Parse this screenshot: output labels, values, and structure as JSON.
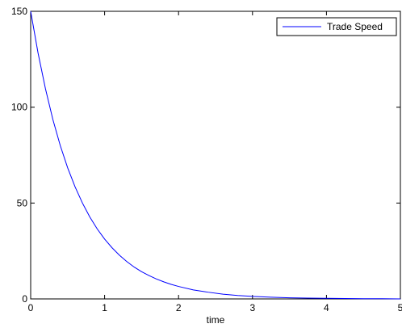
{
  "chart_data": {
    "type": "line",
    "title": "",
    "xlabel": "time",
    "ylabel": "",
    "xlim": [
      0,
      5
    ],
    "ylim": [
      0,
      150
    ],
    "x_ticks": [
      "0",
      "1",
      "2",
      "3",
      "4",
      "5"
    ],
    "y_ticks": [
      "0",
      "50",
      "100",
      "150"
    ],
    "grid": false,
    "legend": {
      "position": "top-right",
      "entries": [
        "Trade Speed"
      ]
    },
    "series": [
      {
        "name": "Trade Speed",
        "color": "#0000ff",
        "x": [
          0,
          0.1,
          0.2,
          0.3,
          0.4,
          0.5,
          0.6,
          0.7,
          0.8,
          0.9,
          1.0,
          1.1,
          1.2,
          1.3,
          1.4,
          1.5,
          1.6,
          1.7,
          1.8,
          1.9,
          2.0,
          2.2,
          2.4,
          2.6,
          2.8,
          3.0,
          3.25,
          3.5,
          3.75,
          4.0,
          4.25,
          4.5,
          4.75,
          5.0
        ],
        "y": [
          150,
          128.2,
          109.6,
          93.6,
          80.0,
          68.4,
          58.5,
          50.0,
          42.7,
          36.5,
          31.2,
          26.7,
          22.8,
          19.5,
          16.6,
          14.2,
          12.2,
          10.4,
          8.9,
          7.6,
          6.5,
          4.7,
          3.5,
          2.5,
          1.8,
          1.3,
          0.9,
          0.6,
          0.4,
          0.3,
          0.2,
          0.1,
          0.1,
          0.0
        ]
      }
    ]
  }
}
